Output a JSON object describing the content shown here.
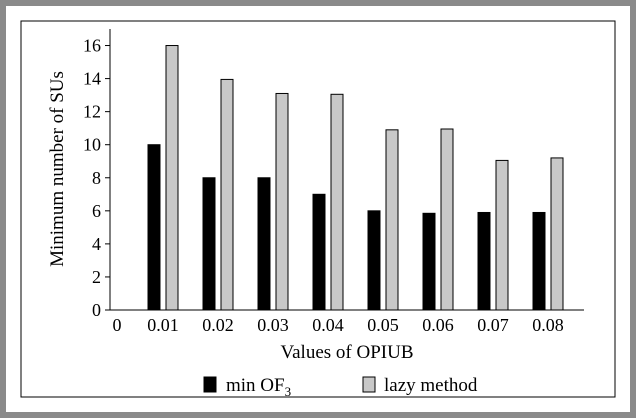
{
  "chart_data": {
    "type": "bar",
    "xlabel": "Values of OPIUB",
    "ylabel": "Minimum number of SUs",
    "x_origin_label": "0",
    "categories": [
      "0.01",
      "0.02",
      "0.03",
      "0.04",
      "0.05",
      "0.06",
      "0.07",
      "0.08"
    ],
    "series": [
      {
        "name": "min OF",
        "name_subscript": "3",
        "color": "#000000",
        "values": [
          10,
          8,
          8,
          7,
          6,
          5.85,
          5.9,
          5.9
        ]
      },
      {
        "name": "lazy method",
        "color": "#c8c8c8",
        "values": [
          16,
          13.95,
          13.1,
          13.05,
          10.9,
          10.95,
          9.05,
          9.2
        ]
      }
    ],
    "ylim": [
      0,
      17
    ],
    "yticks": [
      0,
      2,
      4,
      6,
      8,
      10,
      12,
      14,
      16
    ],
    "grid": false,
    "legend_position": "bottom"
  }
}
